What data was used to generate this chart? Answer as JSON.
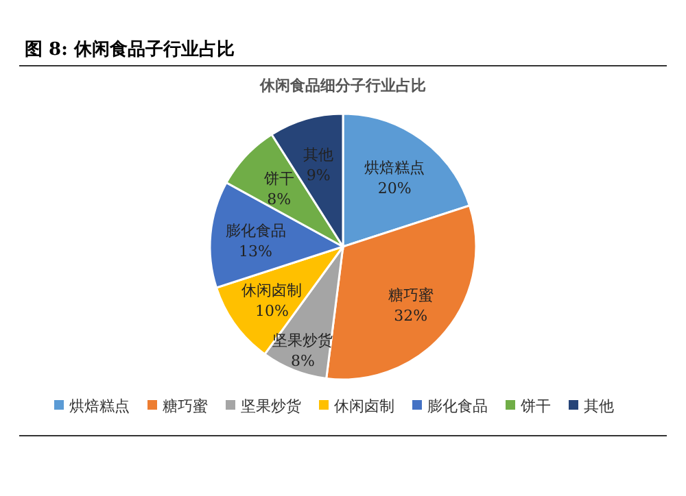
{
  "chart_data": {
    "type": "pie",
    "title": "图 8: 休闲食品子行业占比",
    "subtitle": "休闲食品细分子行业占比",
    "categories": [
      "烘焙糕点",
      "糖巧蜜",
      "坚果炒货",
      "休闲卤制",
      "膨化食品",
      "饼干",
      "其他"
    ],
    "values": [
      20,
      32,
      8,
      10,
      13,
      8,
      9
    ],
    "colors": [
      "#5b9bd5",
      "#ed7d31",
      "#a5a5a5",
      "#ffc000",
      "#4472c4",
      "#70ad47",
      "#264478"
    ],
    "value_labels": [
      "20%",
      "32%",
      "8%",
      "10%",
      "13%",
      "8%",
      "9%"
    ],
    "legend": "bottom"
  }
}
